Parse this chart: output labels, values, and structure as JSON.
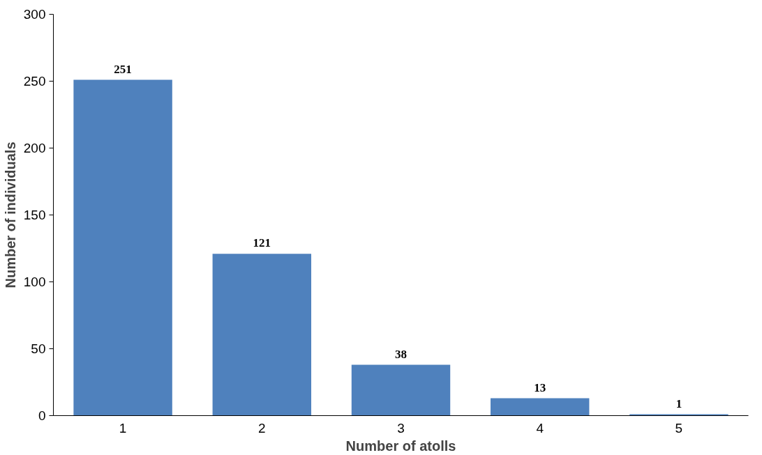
{
  "chart_data": {
    "type": "bar",
    "xlabel": "Number of atolls",
    "ylabel": "Number of individuals",
    "categories": [
      "1",
      "2",
      "3",
      "4",
      "5"
    ],
    "values": [
      251,
      121,
      38,
      13,
      1
    ],
    "color": "#4f81bd",
    "ylim": [
      0,
      300
    ],
    "yticks": [
      0,
      50,
      100,
      150,
      200,
      250,
      300
    ],
    "grid": false,
    "data_labels": true
  }
}
